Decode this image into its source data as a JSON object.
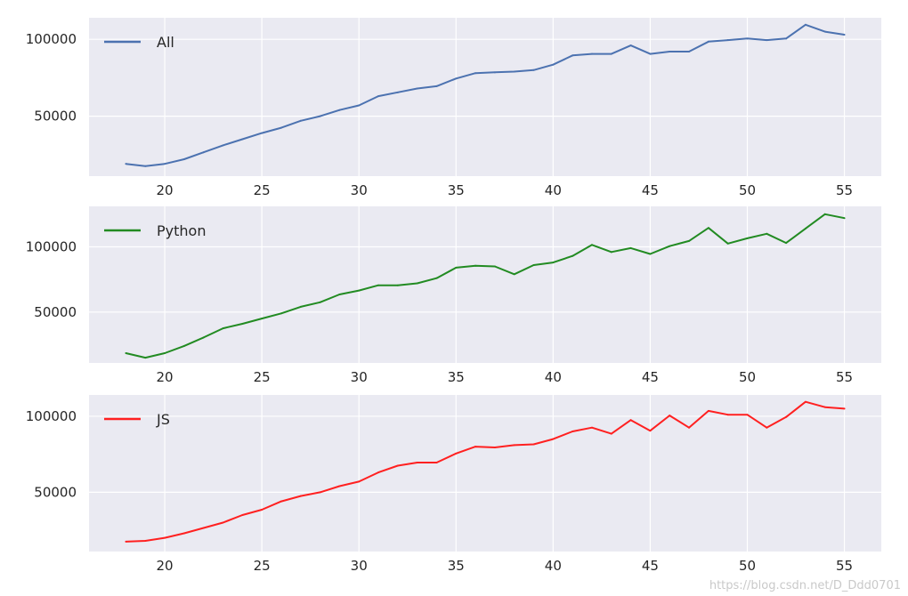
{
  "chart_data": [
    {
      "type": "line",
      "x": [
        18,
        19,
        20,
        21,
        22,
        23,
        24,
        25,
        26,
        27,
        28,
        29,
        30,
        31,
        32,
        33,
        34,
        35,
        36,
        37,
        38,
        39,
        40,
        41,
        42,
        43,
        44,
        45,
        46,
        47,
        48,
        49,
        50,
        51,
        52,
        53,
        54,
        55
      ],
      "series": [
        {
          "name": "All",
          "color": "#4c72b0",
          "values": [
            19000,
            17500,
            19000,
            22000,
            26500,
            31000,
            35000,
            39000,
            42500,
            47000,
            50000,
            54000,
            57000,
            63000,
            65500,
            68000,
            69500,
            74500,
            78000,
            78500,
            79000,
            80000,
            83500,
            89500,
            90500,
            90500,
            96000,
            90500,
            92000,
            92000,
            98500,
            99500,
            100500,
            99500,
            100500,
            109500,
            105000,
            103000
          ]
        }
      ],
      "xlim": [
        16.1,
        56.9
      ],
      "ylim": [
        11000,
        114000
      ],
      "xticks": [
        20,
        25,
        30,
        35,
        40,
        45,
        50,
        55
      ],
      "xtick_labels": [
        "20",
        "25",
        "30",
        "35",
        "40",
        "45",
        "50",
        "55"
      ],
      "yticks": [
        50000,
        100000
      ],
      "ytick_labels": [
        "50000",
        "100000"
      ],
      "grid": true,
      "legend": "upper left"
    },
    {
      "type": "line",
      "x": [
        18,
        19,
        20,
        21,
        22,
        23,
        24,
        25,
        26,
        27,
        28,
        29,
        30,
        31,
        32,
        33,
        34,
        35,
        36,
        37,
        38,
        39,
        40,
        41,
        42,
        43,
        44,
        45,
        46,
        47,
        48,
        49,
        50,
        51,
        52,
        53,
        54,
        55
      ],
      "series": [
        {
          "name": "Python",
          "color": "#228b22",
          "values": [
            18500,
            15000,
            18500,
            24000,
            30500,
            37500,
            41000,
            45000,
            49000,
            54000,
            57500,
            63500,
            66500,
            70500,
            70500,
            72000,
            76000,
            84000,
            85500,
            85000,
            79000,
            86000,
            88000,
            93000,
            101500,
            96000,
            99000,
            94500,
            100500,
            104500,
            114500,
            102500,
            106500,
            110000,
            103000,
            114000,
            125000,
            122000
          ]
        }
      ],
      "xlim": [
        16.1,
        56.9
      ],
      "ylim": [
        11000,
        131000
      ],
      "xticks": [
        20,
        25,
        30,
        35,
        40,
        45,
        50,
        55
      ],
      "xtick_labels": [
        "20",
        "25",
        "30",
        "35",
        "40",
        "45",
        "50",
        "55"
      ],
      "yticks": [
        50000,
        100000
      ],
      "ytick_labels": [
        "50000",
        "100000"
      ],
      "grid": true,
      "legend": "upper left"
    },
    {
      "type": "line",
      "x": [
        18,
        19,
        20,
        21,
        22,
        23,
        24,
        25,
        26,
        27,
        28,
        29,
        30,
        31,
        32,
        33,
        34,
        35,
        36,
        37,
        38,
        39,
        40,
        41,
        42,
        43,
        44,
        45,
        46,
        47,
        48,
        49,
        50,
        51,
        52,
        53,
        54,
        55
      ],
      "series": [
        {
          "name": "JS",
          "color": "#ff2020",
          "values": [
            17500,
            18000,
            20000,
            23000,
            26500,
            30000,
            35000,
            38500,
            44000,
            47500,
            50000,
            54000,
            57000,
            63000,
            67500,
            69500,
            69500,
            75500,
            80000,
            79500,
            81000,
            81500,
            85000,
            90000,
            92500,
            88500,
            97500,
            90500,
            100500,
            92500,
            103500,
            101000,
            101000,
            92500,
            99500,
            109500,
            106000,
            105000
          ]
        }
      ],
      "xlim": [
        16.1,
        56.9
      ],
      "ylim": [
        11000,
        114000
      ],
      "xticks": [
        20,
        25,
        30,
        35,
        40,
        45,
        50,
        55
      ],
      "xtick_labels": [
        "20",
        "25",
        "30",
        "35",
        "40",
        "45",
        "50",
        "55"
      ],
      "yticks": [
        50000,
        100000
      ],
      "ytick_labels": [
        "50000",
        "100000"
      ],
      "grid": true,
      "legend": "upper left"
    }
  ],
  "style": {
    "panel_bg": "#eaeaf2",
    "grid_color": "#ffffff"
  },
  "watermark": "https://blog.csdn.net/D_Ddd0701"
}
